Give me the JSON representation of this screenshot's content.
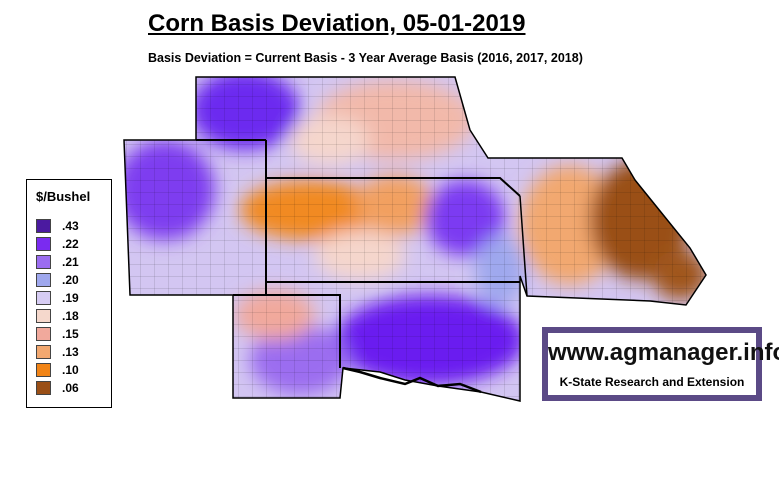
{
  "header": {
    "title": "Corn Basis Deviation, 05-01-2019",
    "subtitle": "Basis Deviation = Current Basis - 3 Year Average Basis (2016, 2017, 2018)"
  },
  "legend": {
    "title": "$/Bushel",
    "items": [
      {
        "label": ".43",
        "color": "#4b1aa0"
      },
      {
        "label": ".22",
        "color": "#7a2bf0"
      },
      {
        "label": ".21",
        "color": "#9b6df0"
      },
      {
        "label": ".20",
        "color": "#9fa8ee"
      },
      {
        "label": ".19",
        "color": "#d6ccf3"
      },
      {
        "label": ".18",
        "color": "#f5d8cc"
      },
      {
        "label": ".15",
        "color": "#f1a99c"
      },
      {
        "label": ".13",
        "color": "#f2a870"
      },
      {
        "label": ".10",
        "color": "#f18416"
      },
      {
        "label": ".06",
        "color": "#9a4f16"
      }
    ]
  },
  "logo": {
    "url_text": "www.agmanager.info",
    "org_text": "K-State Research and Extension"
  }
}
